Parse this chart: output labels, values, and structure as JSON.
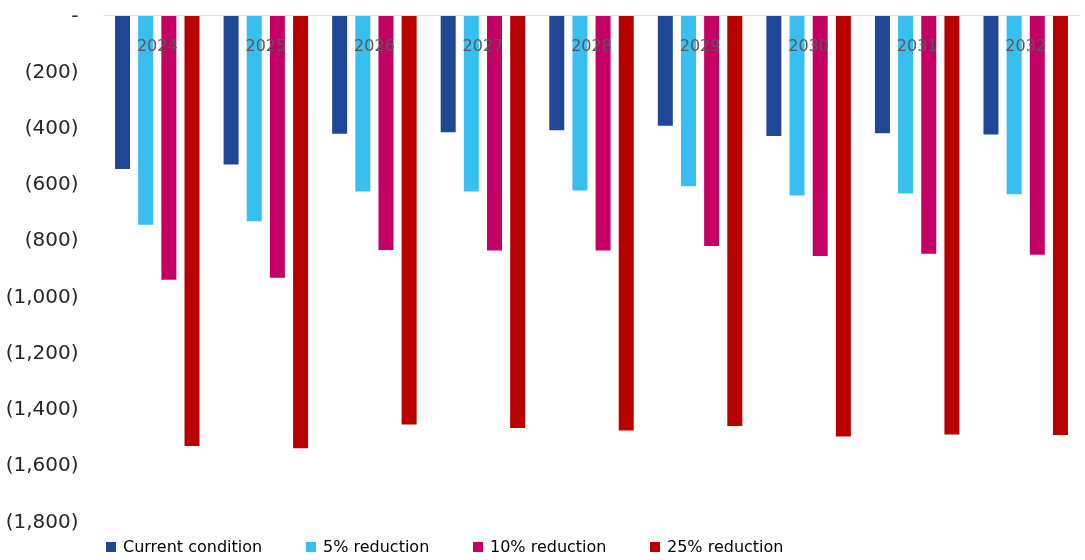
{
  "chart_data": {
    "type": "bar",
    "categories": [
      "2024",
      "2025",
      "2026",
      "2027",
      "2028",
      "2029",
      "2030",
      "2031",
      "2032"
    ],
    "series": [
      {
        "name": "Current condition",
        "color": "#1f4796",
        "values": [
          -548,
          -532,
          -422,
          -417,
          -410,
          -394,
          -430,
          -421,
          -425
        ]
      },
      {
        "name": "5% reduction",
        "color": "#37bfef",
        "values": [
          -746,
          -734,
          -628,
          -628,
          -624,
          -609,
          -642,
          -635,
          -638
        ]
      },
      {
        "name": "10% reduction",
        "color": "#c40065",
        "values": [
          -942,
          -935,
          -836,
          -838,
          -838,
          -822,
          -857,
          -849,
          -853
        ]
      },
      {
        "name": "25% reduction",
        "color": "#b90000",
        "values": [
          -1533,
          -1541,
          -1457,
          -1469,
          -1478,
          -1462,
          -1499,
          -1492,
          -1494
        ]
      }
    ],
    "ylim": [
      -1800,
      0
    ],
    "yticks": [
      {
        "value": 0,
        "label": "-"
      },
      {
        "value": -200,
        "label": "(200)"
      },
      {
        "value": -400,
        "label": "(400)"
      },
      {
        "value": -600,
        "label": "(600)"
      },
      {
        "value": -800,
        "label": "(800)"
      },
      {
        "value": -1000,
        "label": "(1,000)"
      },
      {
        "value": -1200,
        "label": "(1,200)"
      },
      {
        "value": -1400,
        "label": "(1,400)"
      },
      {
        "value": -1600,
        "label": "(1,600)"
      },
      {
        "value": -1800,
        "label": "(1,800)"
      }
    ],
    "grid": false,
    "legend": "bottom"
  }
}
